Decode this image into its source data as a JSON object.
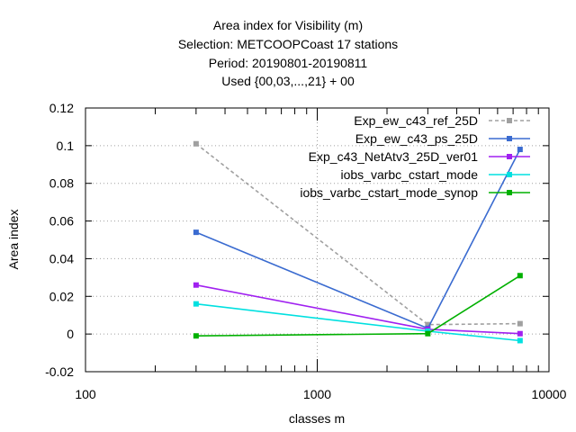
{
  "chart_data": {
    "type": "line",
    "title_lines": [
      "Area index  for Visibility (m)",
      "Selection: METCOOPCoast     17 stations",
      "Period: 20190801-20190811",
      "Used {00,03,...,21} + 00"
    ],
    "xlabel": "classes m",
    "ylabel": "Area index",
    "x_scale": "log",
    "xlim": [
      100,
      10000
    ],
    "ylim": [
      -0.02,
      0.12
    ],
    "x_ticks": [
      100,
      1000,
      10000
    ],
    "x_tick_labels": [
      "100",
      "1000",
      "10000"
    ],
    "y_ticks": [
      -0.02,
      0,
      0.02,
      0.04,
      0.06,
      0.08,
      0.1,
      0.12
    ],
    "y_tick_labels": [
      "-0.02",
      "0",
      "0.02",
      "0.04",
      "0.06",
      "0.08",
      "0.1",
      "0.12"
    ],
    "grid": true,
    "legend_position": "top-right",
    "x": [
      300,
      3000,
      7500
    ],
    "series": [
      {
        "name": "Exp_ew_c43_ref_25D",
        "color": "#a0a0a0",
        "dashed": true,
        "values": [
          0.101,
          0.005,
          0.0055
        ]
      },
      {
        "name": "Exp_ew_c43_ps_25D",
        "color": "#3a6bd0",
        "dashed": false,
        "values": [
          0.054,
          0.003,
          0.098
        ]
      },
      {
        "name": "Exp_c43_NetAtv3_25D_ver01",
        "color": "#a020f0",
        "dashed": false,
        "values": [
          0.026,
          0.0025,
          0.0002
        ]
      },
      {
        "name": "iobs_varbc_cstart_mode",
        "color": "#00e0e0",
        "dashed": false,
        "values": [
          0.016,
          0.0015,
          -0.0035
        ]
      },
      {
        "name": "iobs_varbc_cstart_mode_synop",
        "color": "#00b000",
        "dashed": false,
        "values": [
          -0.001,
          0.0002,
          0.031
        ]
      }
    ]
  }
}
